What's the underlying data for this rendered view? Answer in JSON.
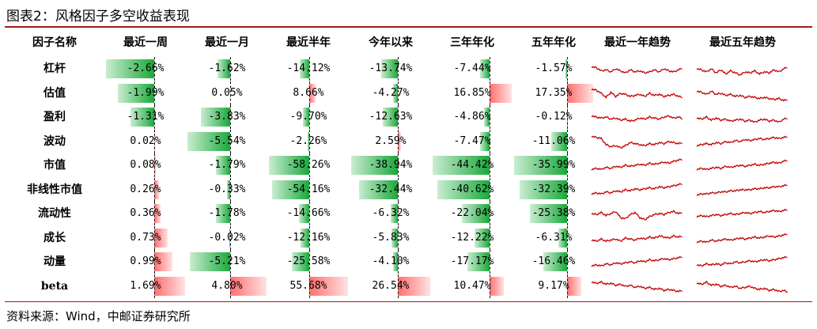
{
  "title": "图表2：风格因子多空收益表现",
  "source": "资料来源：Wind，中邮证券研究所",
  "colors": {
    "negative": "#1aa83a",
    "positive": "#ff6f6f",
    "trend_line": "#c00000",
    "rule": "#9a1d1d"
  },
  "chart_data": {
    "type": "table",
    "columns": [
      "因子名称",
      "最近一周",
      "最近一月",
      "最近半年",
      "今年以来",
      "三年年化",
      "五年年化",
      "最近一年趋势",
      "最近五年趋势"
    ],
    "rows": [
      {
        "factor": "杠杆",
        "values": [
          "-2.66%",
          "-1.62%",
          "-14.12%",
          "-13.74%",
          "-7.44%",
          "-1.57%"
        ],
        "nums": [
          -2.66,
          -1.62,
          -14.12,
          -13.74,
          -7.44,
          -1.57
        ]
      },
      {
        "factor": "估值",
        "values": [
          "-1.99%",
          "0.05%",
          "8.66%",
          "-4.27%",
          "16.85%",
          "17.35%"
        ],
        "nums": [
          -1.99,
          0.05,
          8.66,
          -4.27,
          16.85,
          17.35
        ]
      },
      {
        "factor": "盈利",
        "values": [
          "-1.31%",
          "-3.83%",
          "-9.70%",
          "-12.63%",
          "-4.86%",
          "-0.12%"
        ],
        "nums": [
          -1.31,
          -3.83,
          -9.7,
          -12.63,
          -4.86,
          -0.12
        ]
      },
      {
        "factor": "波动",
        "values": [
          "0.02%",
          "-5.54%",
          "-2.26%",
          "2.59%",
          "-7.47%",
          "-11.06%"
        ],
        "nums": [
          0.02,
          -5.54,
          -2.26,
          2.59,
          -7.47,
          -11.06
        ]
      },
      {
        "factor": "市值",
        "values": [
          "0.08%",
          "-1.79%",
          "-58.26%",
          "-38.94%",
          "-44.42%",
          "-35.99%"
        ],
        "nums": [
          0.08,
          -1.79,
          -58.26,
          -38.94,
          -44.42,
          -35.99
        ]
      },
      {
        "factor": "非线性市值",
        "values": [
          "0.26%",
          "-0.33%",
          "-54.16%",
          "-32.44%",
          "-40.62%",
          "-32.39%"
        ],
        "nums": [
          0.26,
          -0.33,
          -54.16,
          -32.44,
          -40.62,
          -32.39
        ]
      },
      {
        "factor": "流动性",
        "values": [
          "0.36%",
          "-1.78%",
          "-14.66%",
          "-6.32%",
          "-22.04%",
          "-25.38%"
        ],
        "nums": [
          0.36,
          -1.78,
          -14.66,
          -6.32,
          -22.04,
          -25.38
        ]
      },
      {
        "factor": "成长",
        "values": [
          "0.73%",
          "-0.02%",
          "-12.16%",
          "-5.83%",
          "-12.22%",
          "-6.31%"
        ],
        "nums": [
          0.73,
          -0.02,
          -12.16,
          -5.83,
          -12.22,
          -6.31
        ]
      },
      {
        "factor": "动量",
        "values": [
          "0.99%",
          "-5.21%",
          "-25.58%",
          "-4.10%",
          "-17.17%",
          "-16.46%"
        ],
        "nums": [
          0.99,
          -5.21,
          -25.58,
          -4.1,
          -17.17,
          -16.46
        ]
      },
      {
        "factor": "beta",
        "values": [
          "1.69%",
          "4.80%",
          "55.68%",
          "26.54%",
          "10.47%",
          "9.17%"
        ],
        "nums": [
          1.69,
          4.8,
          55.68,
          26.54,
          10.47,
          9.17
        ]
      }
    ],
    "trends": [
      {
        "one_year": [
          0.6,
          0.55,
          0.4,
          0.45,
          0.35,
          0.5,
          0.4,
          0.3,
          0.45,
          0.35,
          0.4,
          0.3,
          0.35,
          0.45,
          0.35,
          0.5,
          0.4,
          0.35,
          0.45,
          0.55
        ],
        "five_year": [
          0.5,
          0.45,
          0.35,
          0.5,
          0.3,
          0.45,
          0.25,
          0.4,
          0.3,
          0.2,
          0.35,
          0.3,
          0.4,
          0.25,
          0.35,
          0.3,
          0.45,
          0.35,
          0.5,
          0.6
        ]
      },
      {
        "one_year": [
          0.7,
          0.65,
          0.5,
          0.3,
          0.55,
          0.35,
          0.5,
          0.45,
          0.35,
          0.4,
          0.45,
          0.35,
          0.5,
          0.4,
          0.45,
          0.35,
          0.4,
          0.45,
          0.35,
          0.3
        ],
        "five_year": [
          0.6,
          0.55,
          0.45,
          0.6,
          0.45,
          0.5,
          0.4,
          0.45,
          0.35,
          0.4,
          0.3,
          0.35,
          0.3,
          0.25,
          0.3,
          0.25,
          0.2,
          0.25,
          0.15,
          0.2
        ]
      },
      {
        "one_year": [
          0.55,
          0.5,
          0.45,
          0.5,
          0.4,
          0.45,
          0.35,
          0.4,
          0.3,
          0.35,
          0.45,
          0.4,
          0.5,
          0.45,
          0.4,
          0.5,
          0.55,
          0.45,
          0.5,
          0.4
        ],
        "five_year": [
          0.45,
          0.4,
          0.5,
          0.35,
          0.45,
          0.35,
          0.4,
          0.3,
          0.35,
          0.4,
          0.3,
          0.35,
          0.25,
          0.35,
          0.4,
          0.3,
          0.35,
          0.25,
          0.4,
          0.45
        ]
      },
      {
        "one_year": [
          0.75,
          0.7,
          0.65,
          0.35,
          0.25,
          0.3,
          0.2,
          0.3,
          0.45,
          0.4,
          0.35,
          0.3,
          0.4,
          0.35,
          0.45,
          0.4,
          0.5,
          0.45,
          0.4,
          0.45
        ],
        "five_year": [
          0.3,
          0.35,
          0.4,
          0.35,
          0.45,
          0.4,
          0.5,
          0.45,
          0.55,
          0.5,
          0.6,
          0.55,
          0.6,
          0.65,
          0.6,
          0.65,
          0.7,
          0.65,
          0.7,
          0.75
        ]
      },
      {
        "one_year": [
          0.3,
          0.35,
          0.3,
          0.4,
          0.35,
          0.45,
          0.4,
          0.5,
          0.45,
          0.5,
          0.55,
          0.5,
          0.6,
          0.55,
          0.6,
          0.65,
          0.6,
          0.7,
          0.75,
          0.8
        ],
        "five_year": [
          0.3,
          0.35,
          0.3,
          0.35,
          0.4,
          0.35,
          0.45,
          0.4,
          0.45,
          0.5,
          0.45,
          0.5,
          0.55,
          0.5,
          0.55,
          0.6,
          0.65,
          0.6,
          0.7,
          0.75
        ]
      },
      {
        "one_year": [
          0.3,
          0.35,
          0.3,
          0.4,
          0.35,
          0.45,
          0.4,
          0.5,
          0.45,
          0.55,
          0.5,
          0.55,
          0.6,
          0.55,
          0.65,
          0.6,
          0.65,
          0.7,
          0.75,
          0.8
        ],
        "five_year": [
          0.25,
          0.3,
          0.3,
          0.35,
          0.35,
          0.4,
          0.4,
          0.45,
          0.45,
          0.5,
          0.5,
          0.5,
          0.55,
          0.55,
          0.6,
          0.6,
          0.65,
          0.65,
          0.7,
          0.75
        ]
      },
      {
        "one_year": [
          0.5,
          0.45,
          0.55,
          0.4,
          0.5,
          0.6,
          0.3,
          0.25,
          0.45,
          0.55,
          0.3,
          0.2,
          0.35,
          0.45,
          0.5,
          0.45,
          0.55,
          0.6,
          0.5,
          0.55
        ],
        "five_year": [
          0.35,
          0.4,
          0.35,
          0.4,
          0.45,
          0.4,
          0.45,
          0.5,
          0.45,
          0.5,
          0.55,
          0.5,
          0.55,
          0.6,
          0.55,
          0.6,
          0.65,
          0.6,
          0.65,
          0.7
        ]
      },
      {
        "one_year": [
          0.4,
          0.35,
          0.45,
          0.35,
          0.4,
          0.45,
          0.35,
          0.5,
          0.45,
          0.4,
          0.5,
          0.45,
          0.55,
          0.5,
          0.6,
          0.55,
          0.5,
          0.6,
          0.55,
          0.6
        ],
        "five_year": [
          0.3,
          0.35,
          0.3,
          0.4,
          0.35,
          0.4,
          0.45,
          0.4,
          0.45,
          0.5,
          0.45,
          0.5,
          0.55,
          0.5,
          0.55,
          0.6,
          0.55,
          0.6,
          0.65,
          0.7
        ]
      },
      {
        "one_year": [
          0.3,
          0.35,
          0.3,
          0.4,
          0.35,
          0.45,
          0.4,
          0.45,
          0.5,
          0.45,
          0.55,
          0.5,
          0.6,
          0.55,
          0.6,
          0.65,
          0.6,
          0.65,
          0.7,
          0.75
        ],
        "five_year": [
          0.35,
          0.3,
          0.4,
          0.35,
          0.4,
          0.35,
          0.45,
          0.4,
          0.5,
          0.45,
          0.5,
          0.55,
          0.5,
          0.55,
          0.6,
          0.55,
          0.6,
          0.65,
          0.7,
          0.75
        ]
      },
      {
        "one_year": [
          0.7,
          0.65,
          0.7,
          0.6,
          0.65,
          0.55,
          0.6,
          0.5,
          0.55,
          0.45,
          0.5,
          0.4,
          0.45,
          0.35,
          0.4,
          0.3,
          0.35,
          0.3,
          0.25,
          0.3
        ],
        "five_year": [
          0.65,
          0.6,
          0.7,
          0.55,
          0.6,
          0.5,
          0.55,
          0.45,
          0.5,
          0.4,
          0.45,
          0.5,
          0.4,
          0.35,
          0.4,
          0.3,
          0.35,
          0.25,
          0.3,
          0.2
        ]
      }
    ]
  }
}
